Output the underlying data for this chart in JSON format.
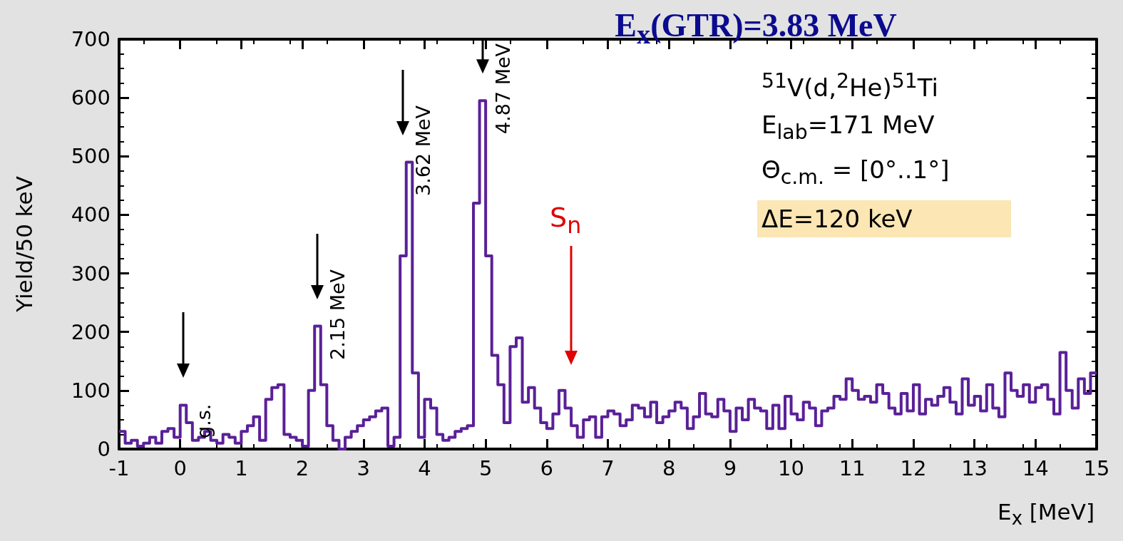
{
  "chart_data": {
    "type": "histogram",
    "title": "E$_{x}$(GTR)=3.83 MeV",
    "xlabel": "E$_{x}$ [MeV]",
    "ylabel": "Yield/50 keV",
    "bins": [
      -1,
      -0.9,
      -0.8,
      -0.7,
      -0.6,
      -0.5,
      -0.4,
      -0.3,
      -0.2,
      -0.1,
      0,
      0.1,
      0.2,
      0.3,
      0.4,
      0.5,
      0.6,
      0.7,
      0.8,
      0.9,
      1,
      1.1,
      1.2,
      1.3,
      1.4,
      1.5,
      1.6,
      1.7,
      1.8,
      1.9,
      2,
      2.1,
      2.2,
      2.3,
      2.4,
      2.5,
      2.6,
      2.7,
      2.8,
      2.9,
      3,
      3.1,
      3.2,
      3.3,
      3.4,
      3.5,
      3.6,
      3.7,
      3.8,
      3.9,
      4,
      4.1,
      4.2,
      4.3,
      4.4,
      4.5,
      4.6,
      4.7,
      4.8,
      4.9,
      5,
      5.1,
      5.2,
      5.3,
      5.4,
      5.5,
      5.6,
      5.7,
      5.8,
      5.9,
      6,
      6.1,
      6.2,
      6.3,
      6.4,
      6.5,
      6.6,
      6.7,
      6.8,
      6.9,
      7,
      7.1,
      7.2,
      7.3,
      7.4,
      7.5,
      7.6,
      7.7,
      7.8,
      7.9,
      8,
      8.1,
      8.2,
      8.3,
      8.4,
      8.5,
      8.6,
      8.7,
      8.8,
      8.9,
      9,
      9.1,
      9.2,
      9.3,
      9.4,
      9.5,
      9.6,
      9.7,
      9.8,
      9.9,
      10,
      10.1,
      10.2,
      10.3,
      10.4,
      10.5,
      10.6,
      10.7,
      10.8,
      10.9,
      11,
      11.1,
      11.2,
      11.3,
      11.4,
      11.5,
      11.6,
      11.7,
      11.8,
      11.9,
      12,
      12.1,
      12.2,
      12.3,
      12.4,
      12.5,
      12.6,
      12.7,
      12.8,
      12.9,
      13,
      13.1,
      13.2,
      13.3,
      13.4,
      13.5,
      13.6,
      13.7,
      13.8,
      13.9,
      14,
      14.1,
      14.2,
      14.3,
      14.4,
      14.5,
      14.6,
      14.7,
      14.8,
      14.9,
      15
    ],
    "values": [
      30,
      10,
      15,
      5,
      10,
      20,
      10,
      30,
      35,
      20,
      75,
      45,
      15,
      20,
      30,
      15,
      10,
      25,
      20,
      10,
      30,
      40,
      55,
      15,
      85,
      105,
      110,
      25,
      20,
      15,
      5,
      100,
      210,
      110,
      40,
      15,
      0,
      20,
      30,
      40,
      50,
      55,
      65,
      70,
      5,
      20,
      330,
      490,
      130,
      20,
      85,
      70,
      25,
      15,
      20,
      30,
      35,
      40,
      420,
      595,
      330,
      160,
      110,
      45,
      175,
      190,
      80,
      105,
      70,
      45,
      35,
      60,
      100,
      70,
      40,
      20,
      50,
      55,
      20,
      55,
      65,
      60,
      40,
      50,
      75,
      70,
      55,
      80,
      45,
      55,
      65,
      80,
      70,
      35,
      55,
      95,
      60,
      55,
      85,
      65,
      30,
      70,
      50,
      85,
      70,
      65,
      35,
      75,
      35,
      90,
      60,
      50,
      80,
      70,
      40,
      65,
      70,
      90,
      85,
      120,
      100,
      85,
      90,
      80,
      110,
      95,
      70,
      60,
      95,
      65,
      110,
      60,
      85,
      75,
      90,
      105,
      80,
      60,
      120,
      75,
      90,
      65,
      110,
      70,
      55,
      130,
      100,
      90,
      110,
      80,
      105,
      110,
      85,
      60,
      165,
      100,
      70,
      120,
      95,
      130
    ],
    "color": "#5a2098",
    "xlim": [
      -1,
      15
    ],
    "xticks": [
      -1,
      0,
      1,
      2,
      3,
      4,
      5,
      6,
      7,
      8,
      9,
      10,
      11,
      12,
      13,
      14,
      15
    ],
    "ylim": [
      0,
      700
    ],
    "yticks": [
      0,
      100,
      200,
      300,
      400,
      500,
      600,
      700
    ],
    "ref_lines": [
      {
        "axis": "x",
        "value": 6.4,
        "label": "S$_{n}$",
        "color": "#e00000"
      }
    ],
    "annotations": [
      {
        "text": "g.s.",
        "x": 0.05,
        "y": 75
      },
      {
        "text": "2.15 MeV",
        "x": 2.25,
        "y": 210
      },
      {
        "text": "3.62 MeV",
        "x": 3.65,
        "y": 490
      },
      {
        "text": "4.87 MeV",
        "x": 4.95,
        "y": 595
      },
      "$^{51}$V(d,$^{2}$He)$^{51}$Ti",
      "E$_{lab}$=171 MeV",
      "Θ$_{c.m.}$ = [0°..1°]",
      "ΔE=120 keV"
    ]
  }
}
